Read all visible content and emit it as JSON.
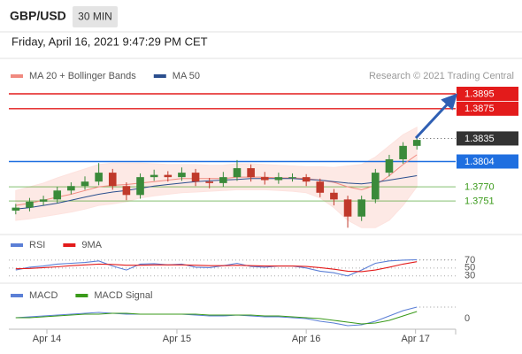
{
  "header": {
    "symbol": "GBP/USD",
    "timeframe": "30 MIN",
    "timestamp": "Friday, April 16, 2021 9:47:29 PM CET",
    "credit": "Research © 2021 Trading Central"
  },
  "chart_data": [
    {
      "type": "candlestick",
      "xlim": [
        -0.5,
        31.8
      ],
      "ylim": [
        1.371,
        1.391
      ],
      "up_color": "#3a8a3a",
      "down_color": "#c0392b",
      "open": [
        1.3738,
        1.3742,
        1.375,
        1.3753,
        1.3765,
        1.3771,
        1.3777,
        1.3789,
        1.3771,
        1.3759,
        1.3783,
        1.3786,
        1.3783,
        1.3789,
        1.3777,
        1.3775,
        1.3783,
        1.3795,
        1.3783,
        1.3779,
        1.3783,
        1.3783,
        1.3777,
        1.3762,
        1.3753,
        1.373,
        1.3753,
        1.3789,
        1.3807,
        1.3825
      ],
      "high": [
        1.3747,
        1.3755,
        1.3758,
        1.377,
        1.3776,
        1.3784,
        1.3802,
        1.3794,
        1.3776,
        1.3788,
        1.3793,
        1.3791,
        1.3796,
        1.3794,
        1.3782,
        1.379,
        1.3806,
        1.38,
        1.379,
        1.3789,
        1.3788,
        1.3787,
        1.3781,
        1.3767,
        1.3758,
        1.3758,
        1.3794,
        1.3813,
        1.383,
        1.3837
      ],
      "low": [
        1.3733,
        1.3737,
        1.3745,
        1.3748,
        1.376,
        1.3766,
        1.3772,
        1.3766,
        1.3752,
        1.3754,
        1.3778,
        1.3777,
        1.3778,
        1.3771,
        1.3768,
        1.377,
        1.3778,
        1.3777,
        1.3773,
        1.3774,
        1.3777,
        1.3771,
        1.3756,
        1.3745,
        1.3715,
        1.3724,
        1.3748,
        1.3784,
        1.3801,
        1.382
      ],
      "close": [
        1.3742,
        1.375,
        1.3753,
        1.3765,
        1.3771,
        1.3777,
        1.3789,
        1.3771,
        1.3759,
        1.3783,
        1.3786,
        1.3783,
        1.3789,
        1.3777,
        1.3775,
        1.3783,
        1.3795,
        1.3783,
        1.3779,
        1.3783,
        1.3783,
        1.3777,
        1.3762,
        1.3753,
        1.373,
        1.3753,
        1.3789,
        1.3807,
        1.3825,
        1.3833
      ],
      "series": [
        {
          "name": "MA 20 + Bollinger Bands",
          "color": "#f08a80",
          "band_color": "#fde3df",
          "values": [
            1.3745,
            1.3748,
            1.3752,
            1.3756,
            1.376,
            1.3765,
            1.377,
            1.3772,
            1.3773,
            1.3775,
            1.3777,
            1.3779,
            1.3781,
            1.3781,
            1.3781,
            1.3781,
            1.3783,
            1.3783,
            1.3783,
            1.3782,
            1.3782,
            1.3781,
            1.3779,
            1.3776,
            1.377,
            1.3766,
            1.3772,
            1.3785,
            1.38,
            1.3813
          ],
          "upper": [
            1.3765,
            1.377,
            1.3775,
            1.3782,
            1.3788,
            1.3794,
            1.38,
            1.3802,
            1.3802,
            1.3802,
            1.3801,
            1.38,
            1.38,
            1.38,
            1.3799,
            1.3799,
            1.3801,
            1.3801,
            1.38,
            1.3799,
            1.3798,
            1.3797,
            1.3797,
            1.3796,
            1.3798,
            1.38,
            1.381,
            1.3825,
            1.384,
            1.385
          ],
          "lower": [
            1.3725,
            1.3727,
            1.373,
            1.3733,
            1.3736,
            1.374,
            1.3745,
            1.3747,
            1.375,
            1.3755,
            1.3758,
            1.376,
            1.3762,
            1.3763,
            1.3764,
            1.3765,
            1.3766,
            1.3766,
            1.3766,
            1.3765,
            1.3764,
            1.3762,
            1.3755,
            1.3742,
            1.3725,
            1.3715,
            1.3715,
            1.3725,
            1.3745,
            1.377
          ]
        },
        {
          "name": "MA 50",
          "color": "#2b4f8e",
          "values": [
            1.374,
            1.3742,
            1.3745,
            1.3748,
            1.3752,
            1.3756,
            1.376,
            1.3763,
            1.3765,
            1.3768,
            1.3771,
            1.3773,
            1.3775,
            1.3777,
            1.3778,
            1.3779,
            1.378,
            1.3781,
            1.3781,
            1.3781,
            1.3781,
            1.378,
            1.3779,
            1.3777,
            1.3775,
            1.3774,
            1.3776,
            1.3779,
            1.3782,
            1.3785
          ]
        }
      ],
      "levels": [
        {
          "value": 1.3895,
          "label": "1.3895",
          "color": "#e31b1b",
          "line": "solid",
          "label_style": "box"
        },
        {
          "value": 1.3875,
          "label": "1.3875",
          "color": "#e31b1b",
          "line": "solid",
          "label_style": "box"
        },
        {
          "value": 1.3835,
          "label": "1.3835",
          "color": "#333333",
          "line": "dotted",
          "label_style": "box"
        },
        {
          "value": 1.3804,
          "label": "1.3804",
          "color": "#1f6fe0",
          "line": "solid",
          "label_style": "box"
        },
        {
          "value": 1.377,
          "label": "1.3770",
          "color": "#3a9a1a",
          "line": "solid",
          "label_style": "plain"
        },
        {
          "value": 1.3751,
          "label": "1.3751",
          "color": "#3a9a1a",
          "line": "solid",
          "label_style": "plain"
        }
      ]
    },
    {
      "type": "line",
      "xlim": [
        -0.5,
        31.8
      ],
      "ylim": [
        16,
        90
      ],
      "yticks": [
        70,
        50,
        30
      ],
      "grid": true,
      "series": [
        {
          "name": "RSI",
          "color": "#5b7fd6",
          "values": [
            45,
            52,
            55,
            60,
            62,
            64,
            68,
            55,
            45,
            60,
            61,
            58,
            60,
            52,
            51,
            56,
            62,
            54,
            52,
            55,
            55,
            50,
            42,
            38,
            30,
            45,
            62,
            68,
            70,
            71
          ]
        },
        {
          "name": "9MA",
          "color": "#e31b1b",
          "values": [
            48,
            49,
            51,
            53,
            56,
            58,
            60,
            59,
            57,
            57,
            58,
            58,
            58,
            57,
            56,
            56,
            57,
            56,
            55,
            55,
            55,
            54,
            51,
            47,
            42,
            41,
            45,
            52,
            60,
            66
          ]
        }
      ]
    },
    {
      "type": "line",
      "xlim": [
        -0.5,
        31.8
      ],
      "ylim": [
        -0.0012,
        0.0022
      ],
      "yticks": [
        0
      ],
      "grid": false,
      "xticks": [
        {
          "value": 2.25,
          "label": "Apr 14"
        },
        {
          "value": 11.65,
          "label": "Apr 15"
        },
        {
          "value": 21,
          "label": "Apr 16"
        },
        {
          "value": 28.9,
          "label": "Apr 17"
        }
      ],
      "series": [
        {
          "name": "MACD",
          "color": "#5b7fd6",
          "values": [
            0.0001,
            0.0002,
            0.0003,
            0.0004,
            0.0005,
            0.0006,
            0.0007,
            0.0006,
            0.0005,
            0.0005,
            0.0005,
            0.0005,
            0.0005,
            0.0004,
            0.0003,
            0.0003,
            0.0004,
            0.0003,
            0.0002,
            0.0002,
            0.0001,
            0,
            -0.0003,
            -0.0005,
            -0.0008,
            -0.0007,
            -0.0003,
            0.0003,
            0.0009,
            0.0013
          ]
        },
        {
          "name": "MACD Signal",
          "color": "#3a9a1a",
          "values": [
            0.0001,
            0.0001,
            0.0002,
            0.0003,
            0.0004,
            0.0005,
            0.0005,
            0.0006,
            0.0006,
            0.0005,
            0.0005,
            0.0005,
            0.0005,
            0.0005,
            0.0004,
            0.0004,
            0.0004,
            0.0004,
            0.0003,
            0.0003,
            0.0002,
            0.0001,
            0,
            -0.0002,
            -0.0004,
            -0.0006,
            -0.0005,
            -0.0002,
            0.0003,
            0.0008
          ]
        }
      ]
    }
  ]
}
